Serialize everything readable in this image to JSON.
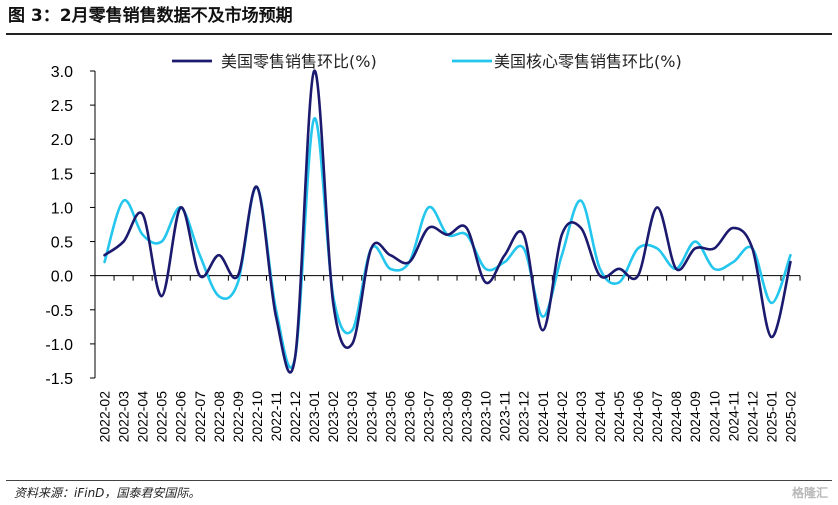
{
  "title": "图 3：2月零售销售数据不及市场预期",
  "source": "资料来源：iFinD，国泰君安国际。",
  "watermark": "格隆汇",
  "colors": {
    "series1": "#1b1a6e",
    "series2": "#24c6ee",
    "axis": "#000000"
  },
  "chart_data": {
    "type": "line",
    "xlabel": "",
    "ylabel": "",
    "ylim": [
      -1.5,
      3.0
    ],
    "yticks": [
      "3.0",
      "2.5",
      "2.0",
      "1.5",
      "1.0",
      "0.5",
      "0.0",
      "-0.5",
      "-1.0",
      "-1.5"
    ],
    "grid": false,
    "legend": "top",
    "x": [
      "2022-02",
      "2022-03",
      "2022-04",
      "2022-05",
      "2022-06",
      "2022-07",
      "2022-08",
      "2022-09",
      "2022-10",
      "2022-11",
      "2022-12",
      "2023-01",
      "2023-02",
      "2023-03",
      "2023-04",
      "2023-05",
      "2023-06",
      "2023-07",
      "2023-08",
      "2023-09",
      "2023-10",
      "2023-11",
      "2023-12",
      "2024-01",
      "2024-02",
      "2024-03",
      "2024-04",
      "2024-05",
      "2024-06",
      "2024-07",
      "2024-08",
      "2024-09",
      "2024-10",
      "2024-11",
      "2024-12",
      "2025-01",
      "2025-02"
    ],
    "series": [
      {
        "name": "美国零售销售环比(%)",
        "values": [
          0.3,
          0.5,
          0.9,
          -0.3,
          1.0,
          0.0,
          0.3,
          0.0,
          1.3,
          -0.6,
          -1.2,
          3.0,
          -0.4,
          -1.0,
          0.4,
          0.3,
          0.2,
          0.7,
          0.6,
          0.7,
          -0.1,
          0.3,
          0.6,
          -0.8,
          0.6,
          0.7,
          0.0,
          0.1,
          0.0,
          1.0,
          0.1,
          0.4,
          0.4,
          0.7,
          0.4,
          -0.9,
          0.2
        ]
      },
      {
        "name": "美国核心零售销售环比(%)",
        "values": [
          0.2,
          1.1,
          0.6,
          0.5,
          1.0,
          0.3,
          -0.3,
          -0.1,
          1.3,
          -0.5,
          -1.2,
          2.3,
          -0.3,
          -0.8,
          0.4,
          0.1,
          0.2,
          1.0,
          0.6,
          0.6,
          0.1,
          0.2,
          0.4,
          -0.6,
          0.3,
          1.1,
          0.1,
          -0.1,
          0.4,
          0.4,
          0.1,
          0.5,
          0.1,
          0.2,
          0.4,
          -0.4,
          0.3
        ]
      }
    ]
  }
}
